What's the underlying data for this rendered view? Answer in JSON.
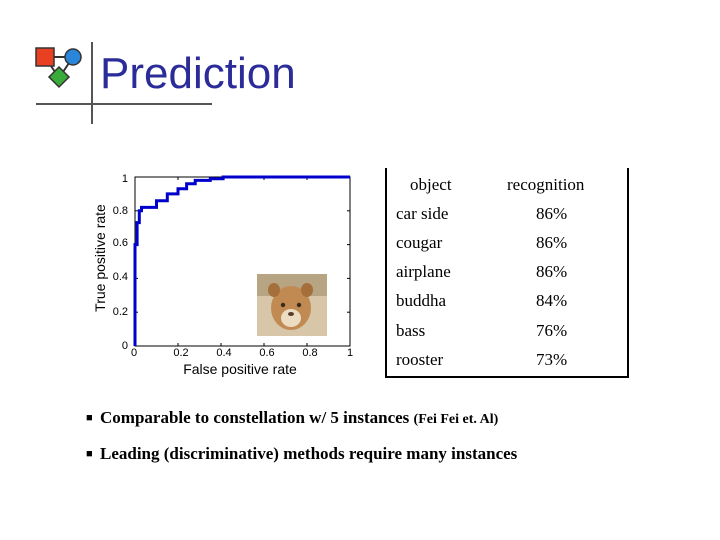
{
  "title": "Prediction",
  "chart_data": {
    "type": "line",
    "xlabel": "False positive rate",
    "ylabel": "True positive rate",
    "xlim": [
      0,
      1
    ],
    "ylim": [
      0,
      1
    ],
    "x_ticks": [
      "0",
      "0.2",
      "0.4",
      "0.6",
      "0.8",
      "1"
    ],
    "y_ticks": [
      "0",
      "0.2",
      "0.4",
      "0.6",
      "0.8",
      "1"
    ],
    "grid": false,
    "series": [
      {
        "color": "#0000cc",
        "x": [
          0,
          0,
          0.01,
          0.01,
          0.02,
          0.02,
          0.03,
          0.03,
          0.1,
          0.1,
          0.15,
          0.15,
          0.2,
          0.2,
          0.24,
          0.24,
          0.28,
          0.28,
          0.35,
          0.35,
          0.41,
          0.41,
          1.0
        ],
        "y": [
          0,
          0.6,
          0.6,
          0.73,
          0.73,
          0.8,
          0.8,
          0.82,
          0.82,
          0.86,
          0.86,
          0.9,
          0.9,
          0.93,
          0.93,
          0.96,
          0.96,
          0.98,
          0.98,
          0.99,
          0.99,
          1.0,
          1.0
        ]
      }
    ]
  },
  "inset_image": {
    "subject": "cougar"
  },
  "table": {
    "headers": [
      "object",
      "recognition"
    ],
    "rows": [
      [
        "car side",
        "86%"
      ],
      [
        "cougar",
        "86%"
      ],
      [
        "airplane",
        "86%"
      ],
      [
        "buddha",
        "84%"
      ],
      [
        "bass",
        "76%"
      ],
      [
        "rooster",
        "73%"
      ]
    ]
  },
  "bullets": [
    {
      "text": "Comparable to constellation w/ 5 instances ",
      "note": "(Fei Fei et. Al)"
    },
    {
      "text": "Leading (discriminative) methods require many instances",
      "note": ""
    }
  ],
  "colors": {
    "title": "#2b2b9a",
    "curve": "#0000cc",
    "logo_red": "#e84020",
    "logo_blue": "#2a86d8",
    "logo_green": "#3aaa3a"
  },
  "icons": {
    "bullet": "square-bullet-icon",
    "logo": "network-nodes-icon"
  }
}
